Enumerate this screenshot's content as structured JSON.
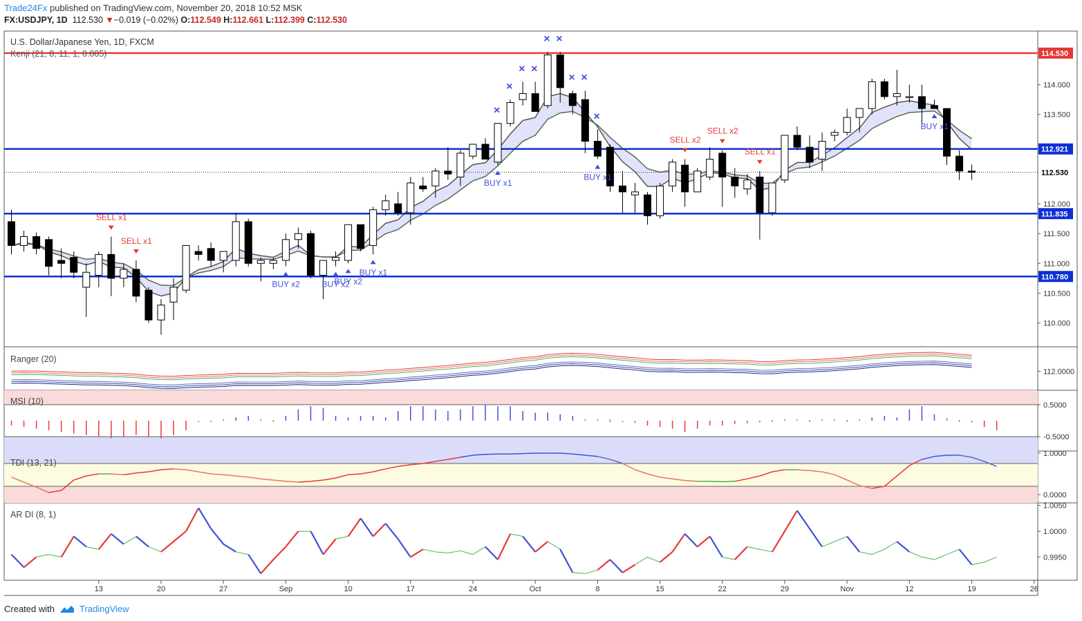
{
  "header": {
    "publisher": "Trade24Fx",
    "published_text": "published on TradingView.com, November 20, 2018 10:52 MSK",
    "symbol": "FX:USDJPY, 1D",
    "last": "112.530",
    "change": "−0.019 (−0.02%)",
    "o_label": "O:",
    "o": "112.549",
    "h_label": "H:",
    "h": "112.661",
    "l_label": "L:",
    "l": "112.399",
    "c_label": "C:",
    "c": "112.530"
  },
  "footer": {
    "created_with": "Created with",
    "tradingview": "TradingView"
  },
  "colors": {
    "red_line": "#e53935",
    "blue_line": "#0d2fd6",
    "bull_body": "#ffffff",
    "bear_body": "#000000",
    "sell": "#e53935",
    "buy": "#3f51d8"
  },
  "chart_data": [
    {
      "type": "candlestick",
      "title": "U.S. Dollar/Japanese Yen, 1D, FXCM",
      "indicator_label": "Kenji (21, 8, 11, 1, 0.005)",
      "ylim": [
        109.6,
        114.9
      ],
      "y_ticks": [
        "110.000",
        "110.500",
        "111.000",
        "111.500",
        "112.000",
        "113.500",
        "114.000"
      ],
      "x_ticks": [
        {
          "i": 7,
          "label": "13"
        },
        {
          "i": 12,
          "label": "20"
        },
        {
          "i": 17,
          "label": "27"
        },
        {
          "i": 22,
          "label": "Sep"
        },
        {
          "i": 27,
          "label": "10"
        },
        {
          "i": 32,
          "label": "17"
        },
        {
          "i": 37,
          "label": "24"
        },
        {
          "i": 42,
          "label": "Oct"
        },
        {
          "i": 47,
          "label": "8"
        },
        {
          "i": 52,
          "label": "15"
        },
        {
          "i": 57,
          "label": "22"
        },
        {
          "i": 62,
          "label": "29"
        },
        {
          "i": 67,
          "label": "Nov"
        },
        {
          "i": 72,
          "label": "12"
        },
        {
          "i": 77,
          "label": "19"
        },
        {
          "i": 82,
          "label": "26"
        }
      ],
      "horizontal_levels": [
        {
          "value": 114.53,
          "label": "114.530",
          "color": "#e53935"
        },
        {
          "value": 112.921,
          "label": "112.921",
          "color": "#0d2fd6"
        },
        {
          "value": 111.835,
          "label": "111.835",
          "color": "#0d2fd6"
        },
        {
          "value": 110.78,
          "label": "110.780",
          "color": "#0d2fd6"
        }
      ],
      "last_price": {
        "value": 112.53,
        "label": "112.530"
      },
      "ohlc": [
        [
          111.7,
          111.9,
          111.15,
          111.3
        ],
        [
          111.3,
          111.55,
          111.2,
          111.45
        ],
        [
          111.45,
          111.52,
          111.15,
          111.25
        ],
        [
          111.4,
          111.45,
          110.8,
          110.95
        ],
        [
          111.05,
          111.25,
          110.75,
          111.0
        ],
        [
          111.1,
          111.2,
          110.75,
          110.85
        ],
        [
          110.6,
          111.0,
          110.1,
          110.85
        ],
        [
          110.8,
          111.2,
          110.6,
          111.15
        ],
        [
          111.15,
          111.45,
          110.45,
          110.75
        ],
        [
          110.75,
          111.0,
          110.6,
          110.9
        ],
        [
          110.9,
          111.05,
          110.35,
          110.45
        ],
        [
          110.55,
          110.6,
          110.0,
          110.05
        ],
        [
          110.05,
          110.4,
          109.8,
          110.3
        ],
        [
          110.35,
          110.75,
          110.05,
          110.6
        ],
        [
          110.55,
          111.3,
          110.5,
          111.3
        ],
        [
          111.2,
          111.3,
          111.05,
          111.15
        ],
        [
          111.25,
          111.35,
          110.95,
          111.05
        ],
        [
          111.05,
          111.2,
          110.85,
          111.2
        ],
        [
          111.05,
          111.85,
          110.95,
          111.7
        ],
        [
          111.7,
          111.75,
          110.95,
          111.0
        ],
        [
          111.0,
          111.1,
          110.7,
          111.05
        ],
        [
          111.0,
          111.1,
          110.9,
          111.05
        ],
        [
          111.05,
          111.5,
          110.95,
          111.4
        ],
        [
          111.4,
          111.6,
          111.25,
          111.5
        ],
        [
          111.5,
          111.55,
          110.75,
          110.8
        ],
        [
          110.8,
          111.05,
          110.4,
          111.05
        ],
        [
          111.05,
          111.2,
          110.95,
          111.1
        ],
        [
          111.05,
          111.65,
          111.0,
          111.65
        ],
        [
          111.65,
          111.65,
          111.2,
          111.25
        ],
        [
          111.3,
          111.95,
          111.15,
          111.9
        ],
        [
          111.9,
          112.15,
          111.8,
          112.05
        ],
        [
          112.0,
          112.2,
          111.8,
          111.85
        ],
        [
          111.85,
          112.45,
          111.65,
          112.35
        ],
        [
          112.3,
          112.45,
          112.2,
          112.25
        ],
        [
          112.3,
          112.6,
          112.1,
          112.55
        ],
        [
          112.55,
          112.95,
          112.4,
          112.5
        ],
        [
          112.45,
          112.9,
          112.3,
          112.85
        ],
        [
          112.8,
          113.0,
          112.75,
          113.0
        ],
        [
          113.0,
          113.1,
          112.75,
          112.75
        ],
        [
          112.7,
          113.35,
          112.65,
          113.35
        ],
        [
          113.35,
          113.75,
          113.3,
          113.7
        ],
        [
          113.75,
          114.05,
          113.65,
          113.85
        ],
        [
          113.85,
          114.05,
          113.55,
          113.55
        ],
        [
          113.65,
          114.55,
          113.6,
          114.5
        ],
        [
          114.5,
          114.55,
          113.7,
          113.95
        ],
        [
          113.85,
          113.9,
          113.5,
          113.65
        ],
        [
          113.75,
          113.9,
          112.85,
          113.05
        ],
        [
          113.05,
          113.25,
          112.75,
          112.8
        ],
        [
          112.95,
          113.0,
          112.2,
          112.3
        ],
        [
          112.3,
          112.55,
          111.85,
          112.2
        ],
        [
          112.15,
          112.35,
          111.85,
          112.2
        ],
        [
          112.15,
          112.2,
          111.65,
          111.8
        ],
        [
          111.8,
          112.35,
          111.75,
          112.3
        ],
        [
          112.3,
          112.75,
          112.2,
          112.7
        ],
        [
          112.65,
          112.75,
          111.95,
          112.2
        ],
        [
          112.2,
          112.6,
          112.2,
          112.55
        ],
        [
          112.45,
          112.95,
          112.4,
          112.75
        ],
        [
          112.85,
          112.9,
          111.95,
          112.45
        ],
        [
          112.45,
          112.6,
          112.1,
          112.3
        ],
        [
          112.25,
          112.5,
          112.15,
          112.4
        ],
        [
          112.45,
          112.55,
          111.4,
          111.85
        ],
        [
          111.85,
          112.35,
          111.8,
          112.35
        ],
        [
          112.4,
          113.15,
          112.35,
          113.15
        ],
        [
          113.15,
          113.3,
          112.9,
          112.95
        ],
        [
          112.95,
          113.15,
          112.6,
          112.7
        ],
        [
          112.75,
          113.2,
          112.55,
          113.05
        ],
        [
          113.15,
          113.25,
          113.05,
          113.2
        ],
        [
          113.2,
          113.6,
          113.15,
          113.45
        ],
        [
          113.45,
          113.6,
          113.2,
          113.6
        ],
        [
          113.6,
          114.1,
          113.5,
          114.05
        ],
        [
          114.05,
          114.1,
          113.75,
          113.8
        ],
        [
          113.8,
          114.25,
          113.65,
          113.85
        ],
        [
          113.8,
          114.0,
          113.7,
          113.8
        ],
        [
          113.8,
          114.0,
          113.35,
          113.6
        ],
        [
          113.65,
          113.75,
          113.6,
          113.6
        ],
        [
          113.6,
          113.6,
          112.65,
          112.8
        ],
        [
          112.8,
          112.9,
          112.4,
          112.55
        ],
        [
          112.55,
          112.66,
          112.4,
          112.53
        ]
      ],
      "signals": [
        {
          "i": 8,
          "type": "sell",
          "label": "SELL x1"
        },
        {
          "i": 10,
          "type": "sell",
          "label": "SELL x1"
        },
        {
          "i": 22,
          "type": "buy",
          "label": "BUY x2"
        },
        {
          "i": 26,
          "type": "buy",
          "label": "BUY x2"
        },
        {
          "i": 27,
          "type": "buy",
          "label": "BUY x2"
        },
        {
          "i": 29,
          "type": "buy",
          "label": "BUY x1"
        },
        {
          "i": 39,
          "type": "buy",
          "label": "BUY x1"
        },
        {
          "i": 47,
          "type": "buy",
          "label": "BUY x1"
        },
        {
          "i": 54,
          "type": "sell",
          "label": "SELL x2"
        },
        {
          "i": 57,
          "type": "sell",
          "label": "SELL x2"
        },
        {
          "i": 60,
          "type": "sell",
          "label": "SELL x1"
        },
        {
          "i": 74,
          "type": "buy",
          "label": "BUY x1"
        }
      ],
      "x_marks": [
        39,
        40,
        41,
        42,
        43,
        44,
        45,
        46,
        47
      ]
    },
    {
      "type": "line",
      "title": "Ranger (20)",
      "y_tick": "112.0000",
      "ylim": [
        109.8,
        114.8
      ]
    },
    {
      "type": "bar",
      "title": "MSI (10)",
      "y_ticks": [
        "0.5000",
        "-0.5000"
      ],
      "ylim": [
        -0.95,
        0.95
      ],
      "values": [
        -0.15,
        -0.2,
        -0.25,
        -0.3,
        -0.35,
        -0.4,
        -0.45,
        -0.5,
        -0.55,
        -0.5,
        -0.45,
        -0.5,
        -0.55,
        -0.45,
        -0.3,
        0,
        0,
        0.05,
        0.1,
        0.15,
        0.05,
        0.02,
        0.15,
        0.35,
        0.45,
        0.4,
        0.15,
        0.1,
        0.15,
        0.15,
        0.1,
        0.3,
        0.45,
        0.45,
        0.35,
        0.3,
        0.35,
        0.45,
        0.5,
        0.45,
        0.45,
        0.3,
        0.25,
        0.25,
        0.2,
        0.15,
        0.05,
        0.05,
        0.04,
        0,
        -0.03,
        -0.15,
        -0.2,
        -0.25,
        -0.35,
        -0.25,
        -0.15,
        -0.15,
        -0.1,
        -0.08,
        -0.05,
        0.02,
        0.05,
        0.05,
        0.02,
        0.05,
        0.05,
        0.02,
        0.05,
        0.1,
        0.15,
        0.1,
        0.35,
        0.45,
        0.2,
        0.08,
        0.02,
        -0.05,
        -0.2,
        -0.3
      ]
    },
    {
      "type": "line",
      "title": "TDI (13, 21)",
      "y_ticks": [
        "1.0000",
        "0.0000"
      ],
      "ylim": [
        -0.2,
        1.05
      ],
      "values": [
        0.42,
        0.3,
        0.18,
        0.05,
        0.1,
        0.35,
        0.45,
        0.5,
        0.5,
        0.48,
        0.52,
        0.55,
        0.6,
        0.62,
        0.6,
        0.55,
        0.5,
        0.48,
        0.45,
        0.42,
        0.38,
        0.35,
        0.32,
        0.3,
        0.32,
        0.35,
        0.4,
        0.48,
        0.5,
        0.55,
        0.62,
        0.68,
        0.72,
        0.75,
        0.8,
        0.85,
        0.9,
        0.95,
        0.97,
        0.98,
        0.98,
        0.99,
        1.0,
        1.0,
        1.0,
        0.98,
        0.95,
        0.92,
        0.85,
        0.75,
        0.6,
        0.5,
        0.42,
        0.38,
        0.34,
        0.32,
        0.32,
        0.31,
        0.32,
        0.38,
        0.45,
        0.55,
        0.6,
        0.6,
        0.58,
        0.55,
        0.48,
        0.35,
        0.22,
        0.15,
        0.2,
        0.45,
        0.7,
        0.85,
        0.92,
        0.95,
        0.95,
        0.9,
        0.8,
        0.68
      ]
    },
    {
      "type": "line",
      "title": "AR DI (8, 1)",
      "y_ticks": [
        "1.0050",
        "1.0000",
        "0.9950"
      ],
      "ylim": [
        0.9905,
        1.0055
      ],
      "values": [
        0.9955,
        0.993,
        0.995,
        0.9955,
        0.995,
        0.999,
        0.997,
        0.9965,
        0.9995,
        0.9975,
        0.999,
        0.997,
        0.996,
        0.998,
        1.0,
        1.0045,
        1.0005,
        0.9975,
        0.996,
        0.9955,
        0.9918,
        0.9945,
        0.997,
        1.0,
        1.0,
        0.9955,
        0.9985,
        0.999,
        1.0025,
        0.999,
        1.0015,
        0.9985,
        0.995,
        0.9965,
        0.996,
        0.9958,
        0.9962,
        0.9955,
        0.997,
        0.9945,
        0.9995,
        0.999,
        0.996,
        0.998,
        0.9965,
        0.992,
        0.9918,
        0.9925,
        0.9945,
        0.992,
        0.9935,
        0.995,
        0.994,
        0.996,
        0.9995,
        0.997,
        0.999,
        0.995,
        0.9945,
        0.997,
        0.9965,
        0.996,
        1.0,
        1.004,
        1.0005,
        0.997,
        0.998,
        0.999,
        0.996,
        0.9955,
        0.9965,
        0.998,
        0.996,
        0.995,
        0.9945,
        0.9955,
        0.9965,
        0.9935,
        0.994,
        0.995
      ]
    }
  ]
}
